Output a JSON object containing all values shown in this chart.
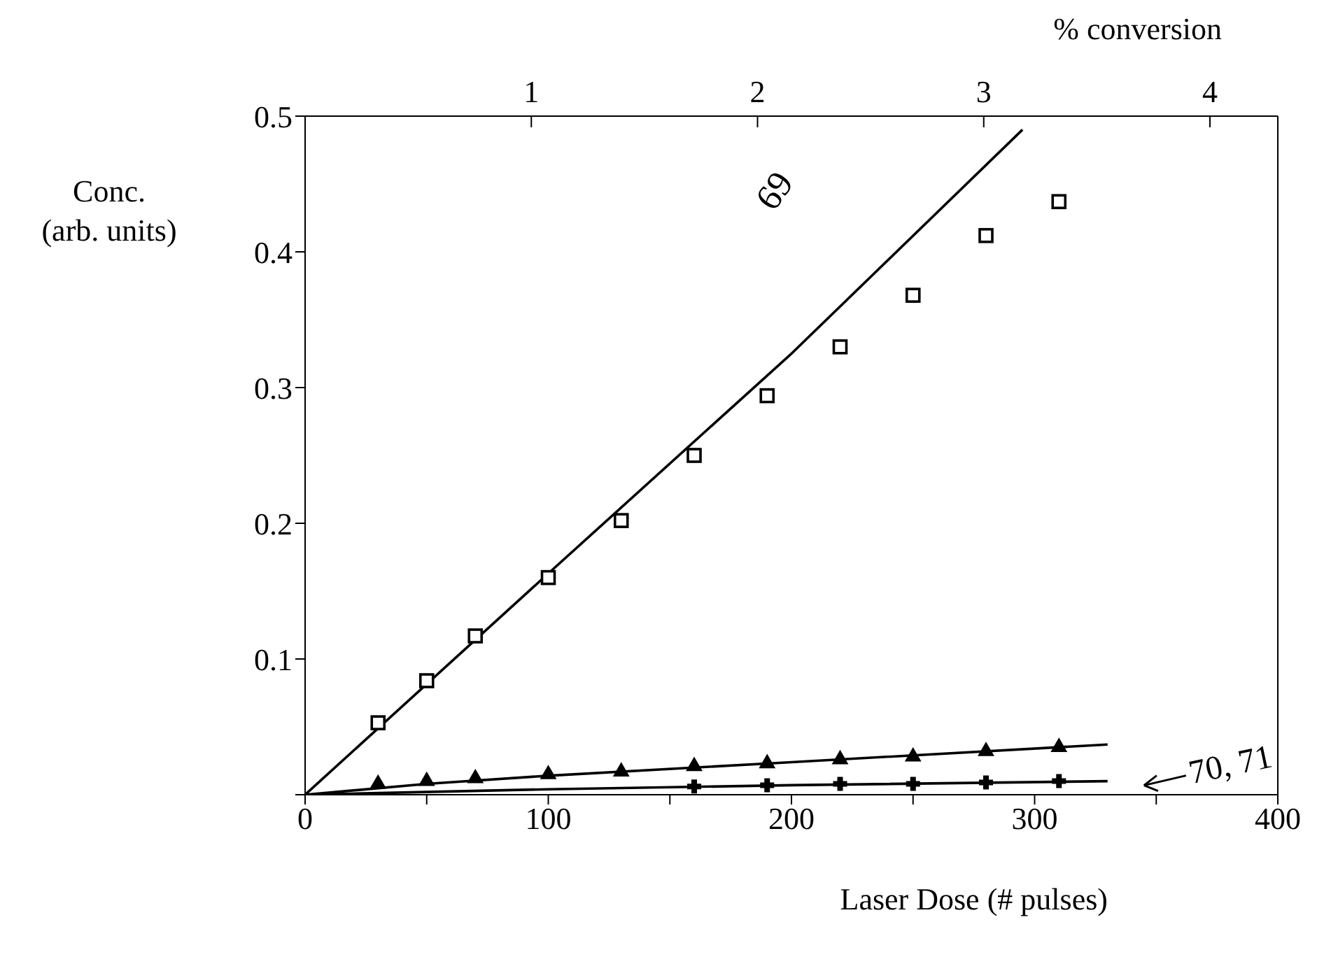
{
  "chart_data": {
    "type": "scatter",
    "xlabel": "Laser Dose (# pulses)",
    "ylabel": "Conc.\n(arb. units)",
    "x2label": "% conversion",
    "xlim": [
      0,
      400
    ],
    "xticks": [
      0,
      {
        "value": 50,
        "label": null
      },
      100,
      {
        "value": 150,
        "label": null
      },
      200,
      {
        "value": 250,
        "label": null
      },
      300,
      {
        "value": 350,
        "label": null
      },
      400
    ],
    "x2lim": [
      0,
      4.3
    ],
    "x2ticks": [
      1,
      2,
      3,
      4
    ],
    "ylim": [
      0,
      0.5
    ],
    "yticks": [
      {
        "value": 0,
        "label": null
      },
      0.1,
      0.2,
      0.3,
      0.4,
      0.5
    ],
    "series": [
      {
        "marker": "square",
        "color": "#000000",
        "x": [
          30,
          50,
          70,
          100,
          130,
          160,
          190,
          220,
          250,
          280,
          310
        ],
        "values": [
          0.053,
          0.084,
          0.117,
          0.16,
          0.202,
          0.25,
          0.294,
          0.33,
          0.368,
          0.412,
          0.437
        ]
      },
      {
        "type": "line",
        "marker": "none",
        "color": "#000000",
        "x": [
          0,
          100,
          200,
          295
        ],
        "values": [
          0,
          0.163,
          0.325,
          0.49
        ]
      },
      {
        "marker": "triangle",
        "color": "#000000",
        "x": [
          30,
          50,
          70,
          100,
          130,
          160,
          190,
          220,
          250,
          280,
          310
        ],
        "values": [
          0.008,
          0.01,
          0.012,
          0.015,
          0.017,
          0.021,
          0.023,
          0.026,
          0.028,
          0.032,
          0.035
        ]
      },
      {
        "type": "line",
        "marker": "none",
        "color": "#000000",
        "x": [
          0,
          50,
          100,
          200,
          330
        ],
        "values": [
          0,
          0.008,
          0.014,
          0.024,
          0.037
        ]
      },
      {
        "marker": "cross",
        "color": "#000000",
        "x": [
          160,
          190,
          220,
          250,
          280,
          310
        ],
        "values": [
          0.006,
          0.007,
          0.008,
          0.008,
          0.009,
          0.01
        ]
      },
      {
        "type": "line",
        "marker": "none",
        "color": "#000000",
        "x": [
          0,
          100,
          200,
          330
        ],
        "values": [
          0,
          0.004,
          0.007,
          0.01
        ]
      }
    ],
    "annotations": [
      "69",
      "70, 71"
    ]
  }
}
